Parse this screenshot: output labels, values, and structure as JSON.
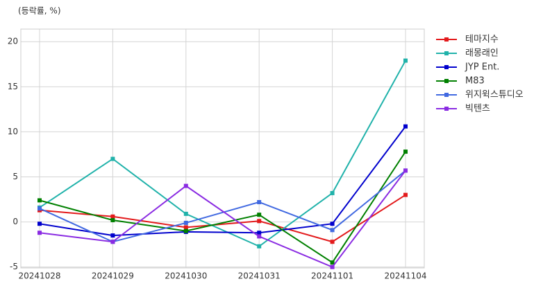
{
  "chart_data": {
    "type": "line",
    "y_label": "(등락률, %)",
    "categories": [
      "20241028",
      "20241029",
      "20241030",
      "20241031",
      "20241101",
      "20241104"
    ],
    "series": [
      {
        "name": "테마지수",
        "color": "#e31a1c",
        "values": [
          1.3,
          0.6,
          -0.6,
          0.1,
          -2.2,
          3.0
        ]
      },
      {
        "name": "래몽래인",
        "color": "#20b2aa",
        "values": [
          1.6,
          7.0,
          0.9,
          -2.7,
          3.2,
          17.9
        ]
      },
      {
        "name": "JYP Ent.",
        "color": "#0000cd",
        "values": [
          -0.2,
          -1.5,
          -1.1,
          -1.2,
          -0.2,
          10.6
        ]
      },
      {
        "name": "M83",
        "color": "#008000",
        "values": [
          2.4,
          0.2,
          -1.0,
          0.8,
          -4.5,
          7.8
        ]
      },
      {
        "name": "위지윅스튜디오",
        "color": "#4169e1",
        "values": [
          1.5,
          -2.2,
          -0.1,
          2.2,
          -0.9,
          5.7
        ]
      },
      {
        "name": "빅텐츠",
        "color": "#8a2be2",
        "values": [
          -1.2,
          -2.2,
          4.0,
          -1.6,
          -5.0,
          5.7
        ]
      }
    ],
    "ylim": [
      -5.1,
      21.4
    ],
    "yticks": [
      -5,
      0,
      5,
      10,
      15,
      20
    ],
    "grid": true,
    "legend": "outside-right"
  }
}
